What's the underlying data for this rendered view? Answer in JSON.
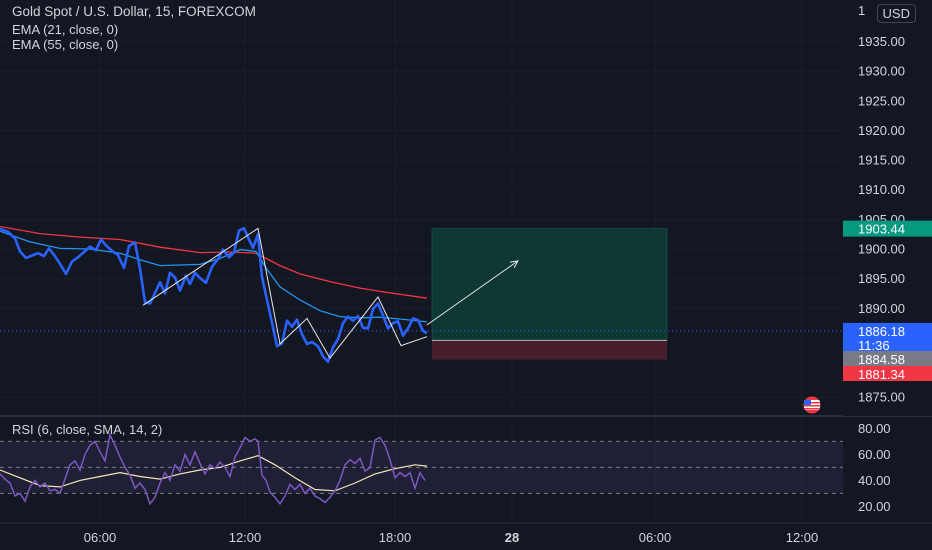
{
  "legend": {
    "title": "Gold Spot / U.S. Dollar, 15, FOREXCOM",
    "ema21": "EMA (21, close, 0)",
    "ema55": "EMA (55, close, 0)",
    "rsi": "RSI (6, close, SMA, 14, 2)"
  },
  "currency_button": "USD",
  "top_axis_cut_label": "1",
  "price_axis": {
    "labels": [
      "1935.00",
      "1930.00",
      "1925.00",
      "1920.00",
      "1915.00",
      "1910.00",
      "1905.00",
      "1900.00",
      "1895.00",
      "1890.00",
      "1875.00"
    ],
    "values": [
      1935,
      1930,
      1925,
      1920,
      1915,
      1910,
      1905,
      1900,
      1895,
      1890,
      1875
    ]
  },
  "price_tags": {
    "target": {
      "text": "1903.44",
      "value": 1903.44,
      "color": "#089981"
    },
    "current": {
      "text": "1886.18",
      "countdown": "11:36",
      "value": 1886.18,
      "color": "#2962ff"
    },
    "entry": {
      "text": "1884.58",
      "value": 1884.58,
      "color": "#787b86"
    },
    "stop": {
      "text": "1881.34",
      "value": 1881.34,
      "color": "#f23645"
    }
  },
  "rsi_axis": {
    "labels": [
      "80.00",
      "60.00",
      "40.00",
      "20.00"
    ],
    "values": [
      80,
      60,
      40,
      20
    ],
    "bands": [
      70,
      50,
      30
    ]
  },
  "time_axis": {
    "labels": [
      "06:00",
      "12:00",
      "18:00",
      "28",
      "06:00",
      "12:00"
    ],
    "bold": [
      false,
      false,
      false,
      true,
      false,
      false
    ]
  },
  "colors": {
    "price": "#2962ff",
    "ema21": "#2196f3",
    "ema55": "#f23645",
    "rsi": "#7e57c2",
    "rsi_ma": "#f5e6b8",
    "profit_zone": "#0e3a36",
    "loss_zone": "#4a1f2a"
  },
  "chart_data": {
    "type": "line",
    "y_range": [
      1872,
      1942
    ],
    "price_series": [
      [
        0,
        1903.4
      ],
      [
        8,
        1902.9
      ],
      [
        15,
        1901.8
      ],
      [
        20,
        1899.6
      ],
      [
        26,
        1898.5
      ],
      [
        32,
        1898.9
      ],
      [
        38,
        1899.3
      ],
      [
        44,
        1898.8
      ],
      [
        49,
        1900.1
      ],
      [
        54,
        1899.0
      ],
      [
        60,
        1897.5
      ],
      [
        66,
        1895.8
      ],
      [
        72,
        1897.9
      ],
      [
        78,
        1898.6
      ],
      [
        84,
        1899.5
      ],
      [
        90,
        1900.4
      ],
      [
        96,
        1899.8
      ],
      [
        101,
        1901.6
      ],
      [
        106,
        1900.6
      ],
      [
        112,
        1899.7
      ],
      [
        118,
        1899.0
      ],
      [
        124,
        1896.8
      ],
      [
        129,
        1900.5
      ],
      [
        135,
        1901.1
      ],
      [
        140,
        1896.7
      ],
      [
        145,
        1891.0
      ],
      [
        150,
        1890.8
      ],
      [
        155,
        1892.6
      ],
      [
        160,
        1894.4
      ],
      [
        165,
        1892.5
      ],
      [
        170,
        1896.0
      ],
      [
        175,
        1895.2
      ],
      [
        180,
        1893.0
      ],
      [
        186,
        1895.5
      ],
      [
        190,
        1894.1
      ],
      [
        195,
        1896.0
      ],
      [
        200,
        1895.1
      ],
      [
        206,
        1894.3
      ],
      [
        212,
        1897.0
      ],
      [
        218,
        1898.3
      ],
      [
        223,
        1899.9
      ],
      [
        229,
        1898.6
      ],
      [
        234,
        1899.4
      ],
      [
        239,
        1903.1
      ],
      [
        244,
        1903.5
      ],
      [
        249,
        1901.6
      ],
      [
        253,
        1900.2
      ],
      [
        258,
        1902.5
      ],
      [
        262,
        1895.3
      ],
      [
        267,
        1891.4
      ],
      [
        272,
        1887.6
      ],
      [
        277,
        1883.6
      ],
      [
        282,
        1884.1
      ],
      [
        287,
        1887.9
      ],
      [
        292,
        1886.9
      ],
      [
        297,
        1888.1
      ],
      [
        302,
        1885.6
      ],
      [
        307,
        1884.0
      ],
      [
        312,
        1884.3
      ],
      [
        318,
        1883.6
      ],
      [
        323,
        1881.9
      ],
      [
        328,
        1881.0
      ],
      [
        333,
        1883.4
      ],
      [
        338,
        1884.8
      ],
      [
        343,
        1887.5
      ],
      [
        348,
        1888.6
      ],
      [
        353,
        1887.9
      ],
      [
        358,
        1888.7
      ],
      [
        363,
        1886.7
      ],
      [
        368,
        1886.6
      ],
      [
        373,
        1889.9
      ],
      [
        378,
        1890.8
      ],
      [
        383,
        1888.8
      ],
      [
        388,
        1886.6
      ],
      [
        393,
        1887.5
      ],
      [
        398,
        1887.8
      ],
      [
        403,
        1885.4
      ],
      [
        408,
        1886.6
      ],
      [
        413,
        1888.3
      ],
      [
        418,
        1888.0
      ],
      [
        423,
        1886.2
      ],
      [
        427,
        1885.8
      ]
    ],
    "ema21_series": [
      [
        0,
        1903.0
      ],
      [
        30,
        1901.2
      ],
      [
        60,
        1900.1
      ],
      [
        90,
        1900.0
      ],
      [
        120,
        1899.3
      ],
      [
        140,
        1898.2
      ],
      [
        160,
        1897.2
      ],
      [
        180,
        1897.3
      ],
      [
        200,
        1897.4
      ],
      [
        220,
        1898.4
      ],
      [
        240,
        1899.9
      ],
      [
        256,
        1899.6
      ],
      [
        266,
        1896.8
      ],
      [
        280,
        1893.6
      ],
      [
        300,
        1891.4
      ],
      [
        320,
        1889.6
      ],
      [
        340,
        1888.6
      ],
      [
        360,
        1888.4
      ],
      [
        380,
        1888.5
      ],
      [
        400,
        1888.2
      ],
      [
        427,
        1887.7
      ]
    ],
    "ema55_series": [
      [
        0,
        1903.8
      ],
      [
        40,
        1902.6
      ],
      [
        80,
        1902.0
      ],
      [
        120,
        1901.6
      ],
      [
        160,
        1900.3
      ],
      [
        200,
        1899.4
      ],
      [
        230,
        1899.5
      ],
      [
        256,
        1899.3
      ],
      [
        280,
        1897.2
      ],
      [
        300,
        1895.8
      ],
      [
        330,
        1894.5
      ],
      [
        360,
        1893.4
      ],
      [
        390,
        1892.6
      ],
      [
        427,
        1891.7
      ]
    ],
    "pattern_lines": [
      [
        [
          143,
          1890.5
        ],
        [
          258,
          1903.5
        ],
        [
          280,
          1884.0
        ],
        [
          307,
          1888.3
        ],
        [
          330,
          1881.6
        ],
        [
          378,
          1891.9
        ],
        [
          401,
          1883.7
        ],
        [
          427,
          1885.2
        ]
      ]
    ],
    "projection_arrow": {
      "from": [
        427,
        1887.2
      ],
      "to": [
        518,
        1898.0
      ]
    },
    "position": {
      "x_start": 432,
      "x_end": 667,
      "target": 1903.44,
      "entry": 1884.58,
      "stop": 1881.34
    },
    "current_price": 1886.18,
    "rsi_range": [
      8,
      88
    ],
    "rsi_series": [
      [
        0,
        45
      ],
      [
        5,
        41
      ],
      [
        10,
        38
      ],
      [
        15,
        28
      ],
      [
        20,
        30
      ],
      [
        25,
        24
      ],
      [
        30,
        35
      ],
      [
        35,
        40
      ],
      [
        40,
        35
      ],
      [
        45,
        38
      ],
      [
        50,
        32
      ],
      [
        55,
        33
      ],
      [
        60,
        30
      ],
      [
        65,
        41
      ],
      [
        70,
        52
      ],
      [
        75,
        55
      ],
      [
        80,
        48
      ],
      [
        85,
        60
      ],
      [
        90,
        67
      ],
      [
        95,
        70
      ],
      [
        100,
        62
      ],
      [
        105,
        55
      ],
      [
        110,
        75
      ],
      [
        115,
        67
      ],
      [
        120,
        58
      ],
      [
        125,
        50
      ],
      [
        130,
        44
      ],
      [
        135,
        34
      ],
      [
        140,
        38
      ],
      [
        145,
        33
      ],
      [
        150,
        22
      ],
      [
        155,
        27
      ],
      [
        160,
        38
      ],
      [
        165,
        46
      ],
      [
        170,
        40
      ],
      [
        175,
        52
      ],
      [
        180,
        47
      ],
      [
        185,
        60
      ],
      [
        190,
        52
      ],
      [
        195,
        62
      ],
      [
        200,
        53
      ],
      [
        205,
        45
      ],
      [
        210,
        52
      ],
      [
        215,
        49
      ],
      [
        220,
        54
      ],
      [
        225,
        50
      ],
      [
        230,
        43
      ],
      [
        235,
        58
      ],
      [
        240,
        65
      ],
      [
        245,
        73
      ],
      [
        250,
        70
      ],
      [
        255,
        72
      ],
      [
        258,
        70
      ],
      [
        262,
        44
      ],
      [
        266,
        40
      ],
      [
        270,
        31
      ],
      [
        275,
        27
      ],
      [
        280,
        22
      ],
      [
        285,
        28
      ],
      [
        290,
        37
      ],
      [
        295,
        33
      ],
      [
        300,
        37
      ],
      [
        305,
        30
      ],
      [
        310,
        34
      ],
      [
        315,
        28
      ],
      [
        320,
        26
      ],
      [
        325,
        23
      ],
      [
        330,
        27
      ],
      [
        335,
        32
      ],
      [
        340,
        40
      ],
      [
        345,
        52
      ],
      [
        350,
        56
      ],
      [
        355,
        53
      ],
      [
        360,
        57
      ],
      [
        365,
        47
      ],
      [
        370,
        50
      ],
      [
        375,
        71
      ],
      [
        380,
        73
      ],
      [
        385,
        67
      ],
      [
        390,
        56
      ],
      [
        395,
        42
      ],
      [
        400,
        46
      ],
      [
        405,
        43
      ],
      [
        410,
        46
      ],
      [
        415,
        34
      ],
      [
        420,
        46
      ],
      [
        425,
        40
      ]
    ],
    "rsi_ma_series": [
      [
        0,
        48
      ],
      [
        20,
        42
      ],
      [
        40,
        36
      ],
      [
        60,
        35
      ],
      [
        80,
        40
      ],
      [
        100,
        43
      ],
      [
        120,
        46
      ],
      [
        140,
        43
      ],
      [
        160,
        41
      ],
      [
        180,
        45
      ],
      [
        200,
        48
      ],
      [
        220,
        50
      ],
      [
        240,
        55
      ],
      [
        258,
        59
      ],
      [
        275,
        52
      ],
      [
        295,
        42
      ],
      [
        315,
        33
      ],
      [
        335,
        32
      ],
      [
        355,
        38
      ],
      [
        375,
        45
      ],
      [
        395,
        49
      ],
      [
        415,
        52
      ],
      [
        427,
        51
      ]
    ],
    "x_time_labels_px": "time"
  }
}
